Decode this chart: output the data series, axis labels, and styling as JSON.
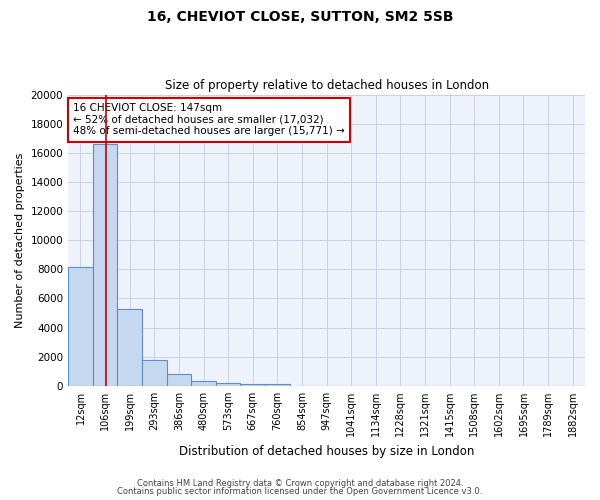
{
  "title": "16, CHEVIOT CLOSE, SUTTON, SM2 5SB",
  "subtitle": "Size of property relative to detached houses in London",
  "xlabel": "Distribution of detached houses by size in London",
  "ylabel": "Number of detached properties",
  "bar_values": [
    8150,
    16600,
    5300,
    1800,
    800,
    320,
    200,
    150,
    100,
    0,
    0,
    0,
    0,
    0,
    0,
    0,
    0,
    0,
    0,
    0,
    0
  ],
  "bar_labels": [
    "12sqm",
    "106sqm",
    "199sqm",
    "293sqm",
    "386sqm",
    "480sqm",
    "573sqm",
    "667sqm",
    "760sqm",
    "854sqm",
    "947sqm",
    "1041sqm",
    "1134sqm",
    "1228sqm",
    "1321sqm",
    "1415sqm",
    "1508sqm",
    "1602sqm",
    "1695sqm",
    "1789sqm",
    "1882sqm"
  ],
  "bar_color": "#c5d8f0",
  "bar_edge_color": "#5b8ec4",
  "bar_edge_width": 0.8,
  "red_line_x": 1.55,
  "ylim": [
    0,
    20000
  ],
  "yticks": [
    0,
    2000,
    4000,
    6000,
    8000,
    10000,
    12000,
    14000,
    16000,
    18000,
    20000
  ],
  "annotation_text": "16 CHEVIOT CLOSE: 147sqm\n← 52% of detached houses are smaller (17,032)\n48% of semi-detached houses are larger (15,771) →",
  "annotation_box_color": "#ffffff",
  "annotation_box_edge_color": "#cc0000",
  "background_color": "#eef2fb",
  "grid_color": "#c8d0e8",
  "footer_line1": "Contains HM Land Registry data © Crown copyright and database right 2024.",
  "footer_line2": "Contains public sector information licensed under the Open Government Licence v3.0."
}
